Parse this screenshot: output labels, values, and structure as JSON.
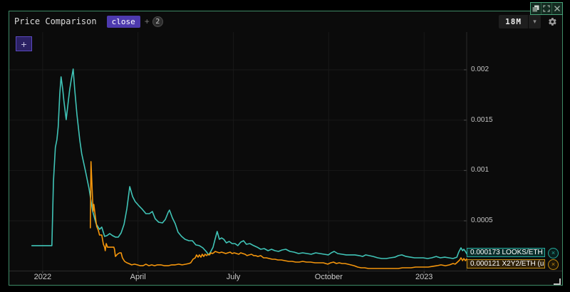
{
  "header": {
    "title": "Price Comparison",
    "badge": "close",
    "plus_sign": "+",
    "count": "2",
    "timeframe": "18M"
  },
  "icons": {
    "chevron_down": "▾",
    "plus": "+",
    "remove": "×"
  },
  "price_labels": [
    {
      "value": "0.000173",
      "pair": "LOOKS/ETH ...",
      "accent": "#25a89b"
    },
    {
      "value": "0.000121",
      "pair": "X2Y2/ETH (u...",
      "accent": "#c08a12"
    }
  ],
  "colors": {
    "panel_border": "#3e8a66",
    "grid": "#181818",
    "axis": "#2b2b2b",
    "tick": "#4d4d4d",
    "looks_line": "#40c4b7",
    "x2y2_line": "#f5960c"
  },
  "chart_data": {
    "type": "line",
    "title": "Price Comparison",
    "timeframe": "18M",
    "x_unit": "months_since_2022_01_01",
    "xlim": [
      -1.05,
      13.34
    ],
    "ylim": [
      0,
      0.002375
    ],
    "grid": true,
    "axis_position": "right",
    "x_ticks": [
      {
        "m": 0,
        "label": "2022"
      },
      {
        "m": 3,
        "label": "April"
      },
      {
        "m": 6,
        "label": "July"
      },
      {
        "m": 9,
        "label": "October"
      },
      {
        "m": 12,
        "label": "2023"
      }
    ],
    "y_ticks": [
      {
        "v": 0.0005,
        "label": "0.0005"
      },
      {
        "v": 0.001,
        "label": "0.001"
      },
      {
        "v": 0.0015,
        "label": "0.0015"
      },
      {
        "v": 0.002,
        "label": "0.002"
      }
    ],
    "series": [
      {
        "name": "LOOKS/ETH",
        "color": "#40c4b7",
        "last_value": 0.000173,
        "points": [
          [
            -0.34,
            0.000253
          ],
          [
            0.29,
            0.000253
          ],
          [
            0.34,
            0.00089
          ],
          [
            0.4,
            0.001229
          ],
          [
            0.45,
            0.001307
          ],
          [
            0.49,
            0.001434
          ],
          [
            0.54,
            0.00176
          ],
          [
            0.58,
            0.00193
          ],
          [
            0.63,
            0.001809
          ],
          [
            0.67,
            0.001689
          ],
          [
            0.74,
            0.001505
          ],
          [
            0.81,
            0.001696
          ],
          [
            0.85,
            0.001802
          ],
          [
            0.9,
            0.001901
          ],
          [
            0.96,
            0.002008
          ],
          [
            1.01,
            0.001802
          ],
          [
            1.08,
            0.001555
          ],
          [
            1.17,
            0.0013
          ],
          [
            1.23,
            0.001166
          ],
          [
            1.35,
            0.000989
          ],
          [
            1.46,
            0.000819
          ],
          [
            1.57,
            0.000599
          ],
          [
            1.68,
            0.000472
          ],
          [
            1.79,
            0.000415
          ],
          [
            1.86,
            0.000437
          ],
          [
            1.95,
            0.000345
          ],
          [
            2.02,
            0.000352
          ],
          [
            2.11,
            0.000373
          ],
          [
            2.2,
            0.000352
          ],
          [
            2.29,
            0.000338
          ],
          [
            2.38,
            0.000338
          ],
          [
            2.47,
            0.00038
          ],
          [
            2.56,
            0.000465
          ],
          [
            2.65,
            0.000621
          ],
          [
            2.74,
            0.00084
          ],
          [
            2.83,
            0.000741
          ],
          [
            2.91,
            0.000691
          ],
          [
            3.03,
            0.000649
          ],
          [
            3.14,
            0.000613
          ],
          [
            3.25,
            0.000571
          ],
          [
            3.36,
            0.000571
          ],
          [
            3.45,
            0.000592
          ],
          [
            3.54,
            0.000521
          ],
          [
            3.65,
            0.000486
          ],
          [
            3.77,
            0.000479
          ],
          [
            3.86,
            0.000514
          ],
          [
            3.95,
            0.000585
          ],
          [
            3.99,
            0.000606
          ],
          [
            4.08,
            0.000529
          ],
          [
            4.17,
            0.000472
          ],
          [
            4.26,
            0.000387
          ],
          [
            4.37,
            0.000345
          ],
          [
            4.48,
            0.000316
          ],
          [
            4.6,
            0.000302
          ],
          [
            4.71,
            0.000302
          ],
          [
            4.82,
            0.00026
          ],
          [
            4.93,
            0.000253
          ],
          [
            5.04,
            0.000231
          ],
          [
            5.16,
            0.000189
          ],
          [
            5.22,
            0.000161
          ],
          [
            5.29,
            0.000196
          ],
          [
            5.36,
            0.000238
          ],
          [
            5.43,
            0.000323
          ],
          [
            5.49,
            0.000394
          ],
          [
            5.56,
            0.000316
          ],
          [
            5.63,
            0.00033
          ],
          [
            5.7,
            0.000316
          ],
          [
            5.78,
            0.000281
          ],
          [
            5.87,
            0.000295
          ],
          [
            5.96,
            0.000274
          ],
          [
            6.05,
            0.000274
          ],
          [
            6.14,
            0.000253
          ],
          [
            6.23,
            0.000288
          ],
          [
            6.32,
            0.000302
          ],
          [
            6.41,
            0.000267
          ],
          [
            6.52,
            0.000274
          ],
          [
            6.64,
            0.000253
          ],
          [
            6.75,
            0.000238
          ],
          [
            6.86,
            0.000217
          ],
          [
            6.97,
            0.000224
          ],
          [
            7.09,
            0.000203
          ],
          [
            7.2,
            0.000217
          ],
          [
            7.31,
            0.000203
          ],
          [
            7.42,
            0.000196
          ],
          [
            7.53,
            0.00021
          ],
          [
            7.65,
            0.000217
          ],
          [
            7.78,
            0.000196
          ],
          [
            7.91,
            0.000189
          ],
          [
            8.05,
            0.000175
          ],
          [
            8.18,
            0.000182
          ],
          [
            8.32,
            0.000175
          ],
          [
            8.45,
            0.000168
          ],
          [
            8.59,
            0.000182
          ],
          [
            8.72,
            0.000175
          ],
          [
            8.86,
            0.000168
          ],
          [
            8.99,
            0.000161
          ],
          [
            9.08,
            0.000182
          ],
          [
            9.17,
            0.000196
          ],
          [
            9.28,
            0.000175
          ],
          [
            9.42,
            0.000168
          ],
          [
            9.55,
            0.000161
          ],
          [
            9.69,
            0.000161
          ],
          [
            9.82,
            0.000161
          ],
          [
            9.96,
            0.000154
          ],
          [
            10.07,
            0.000146
          ],
          [
            10.16,
            0.000161
          ],
          [
            10.27,
            0.000154
          ],
          [
            10.4,
            0.000146
          ],
          [
            10.54,
            0.000132
          ],
          [
            10.67,
            0.000125
          ],
          [
            10.81,
            0.000125
          ],
          [
            10.94,
            0.000132
          ],
          [
            11.08,
            0.000139
          ],
          [
            11.19,
            0.000154
          ],
          [
            11.3,
            0.000161
          ],
          [
            11.43,
            0.000146
          ],
          [
            11.57,
            0.000139
          ],
          [
            11.7,
            0.000132
          ],
          [
            11.83,
            0.000132
          ],
          [
            11.97,
            0.000132
          ],
          [
            12.11,
            0.000125
          ],
          [
            12.24,
            0.000132
          ],
          [
            12.38,
            0.000146
          ],
          [
            12.51,
            0.000132
          ],
          [
            12.65,
            0.000139
          ],
          [
            12.78,
            0.000132
          ],
          [
            12.91,
            0.000125
          ],
          [
            13.03,
            0.000139
          ],
          [
            13.09,
            0.000189
          ],
          [
            13.16,
            0.000231
          ],
          [
            13.21,
            0.000203
          ],
          [
            13.25,
            0.000217
          ],
          [
            13.3,
            0.000196
          ],
          [
            13.34,
            0.000173
          ]
        ]
      },
      {
        "name": "X2Y2/ETH",
        "color": "#f5960c",
        "last_value": 0.000121,
        "points": [
          [
            1.5,
            0.00043
          ],
          [
            1.52,
            0.001088
          ],
          [
            1.57,
            0.000713
          ],
          [
            1.59,
            0.000592
          ],
          [
            1.61,
            0.000663
          ],
          [
            1.66,
            0.000536
          ],
          [
            1.7,
            0.000444
          ],
          [
            1.75,
            0.000408
          ],
          [
            1.79,
            0.000359
          ],
          [
            1.86,
            0.000359
          ],
          [
            1.91,
            0.000267
          ],
          [
            1.95,
            0.000238
          ],
          [
            1.97,
            0.000203
          ],
          [
            2.0,
            0.000274
          ],
          [
            2.04,
            0.000238
          ],
          [
            2.15,
            0.000238
          ],
          [
            2.24,
            0.000238
          ],
          [
            2.26,
            0.000217
          ],
          [
            2.29,
            0.000146
          ],
          [
            2.35,
            0.000168
          ],
          [
            2.42,
            0.000182
          ],
          [
            2.47,
            0.000182
          ],
          [
            2.51,
            0.000132
          ],
          [
            2.58,
            9.7e-05
          ],
          [
            2.65,
            8.3e-05
          ],
          [
            2.71,
            7.6e-05
          ],
          [
            2.8,
            6.2e-05
          ],
          [
            2.89,
            6.9e-05
          ],
          [
            2.98,
            6.2e-05
          ],
          [
            3.07,
            5.4e-05
          ],
          [
            3.16,
            5.4e-05
          ],
          [
            3.25,
            6.9e-05
          ],
          [
            3.34,
            5.4e-05
          ],
          [
            3.43,
            6.2e-05
          ],
          [
            3.52,
            5.4e-05
          ],
          [
            3.61,
            6.2e-05
          ],
          [
            3.72,
            6.2e-05
          ],
          [
            3.83,
            5.4e-05
          ],
          [
            3.95,
            5.4e-05
          ],
          [
            4.06,
            6.2e-05
          ],
          [
            4.17,
            6.2e-05
          ],
          [
            4.28,
            6.9e-05
          ],
          [
            4.39,
            6.2e-05
          ],
          [
            4.51,
            6.9e-05
          ],
          [
            4.6,
            7.6e-05
          ],
          [
            4.66,
            8.3e-05
          ],
          [
            4.73,
            0.000118
          ],
          [
            4.8,
            0.000132
          ],
          [
            4.84,
            0.000161
          ],
          [
            4.89,
            0.000139
          ],
          [
            4.93,
            0.000161
          ],
          [
            4.98,
            0.000139
          ],
          [
            5.02,
            0.000168
          ],
          [
            5.07,
            0.000146
          ],
          [
            5.11,
            0.000168
          ],
          [
            5.16,
            0.000154
          ],
          [
            5.2,
            0.000168
          ],
          [
            5.25,
            0.000161
          ],
          [
            5.29,
            0.000182
          ],
          [
            5.34,
            0.000175
          ],
          [
            5.38,
            0.000182
          ],
          [
            5.43,
            0.000196
          ],
          [
            5.49,
            0.000189
          ],
          [
            5.56,
            0.000182
          ],
          [
            5.63,
            0.000189
          ],
          [
            5.7,
            0.000182
          ],
          [
            5.76,
            0.000175
          ],
          [
            5.83,
            0.000182
          ],
          [
            5.9,
            0.000189
          ],
          [
            5.96,
            0.000175
          ],
          [
            6.03,
            0.000182
          ],
          [
            6.1,
            0.000175
          ],
          [
            6.17,
            0.000168
          ],
          [
            6.23,
            0.000182
          ],
          [
            6.3,
            0.000175
          ],
          [
            6.37,
            0.000168
          ],
          [
            6.43,
            0.000154
          ],
          [
            6.5,
            0.000161
          ],
          [
            6.57,
            0.000168
          ],
          [
            6.64,
            0.000154
          ],
          [
            6.7,
            0.000154
          ],
          [
            6.77,
            0.000146
          ],
          [
            6.86,
            0.000154
          ],
          [
            6.95,
            0.000132
          ],
          [
            7.04,
            0.000132
          ],
          [
            7.13,
            0.000125
          ],
          [
            7.22,
            0.000118
          ],
          [
            7.31,
            0.000118
          ],
          [
            7.4,
            0.000111
          ],
          [
            7.51,
            0.000111
          ],
          [
            7.62,
            0.000104
          ],
          [
            7.74,
            9.7e-05
          ],
          [
            7.85,
            9.7e-05
          ],
          [
            7.96,
            9e-05
          ],
          [
            8.07,
            9e-05
          ],
          [
            8.18,
            9.7e-05
          ],
          [
            8.3,
            9e-05
          ],
          [
            8.43,
            9e-05
          ],
          [
            8.57,
            8.3e-05
          ],
          [
            8.7,
            8.3e-05
          ],
          [
            8.83,
            8.3e-05
          ],
          [
            8.97,
            6.9e-05
          ],
          [
            9.06,
            8.3e-05
          ],
          [
            9.15,
            9e-05
          ],
          [
            9.24,
            7.6e-05
          ],
          [
            9.33,
            8.3e-05
          ],
          [
            9.42,
            7.6e-05
          ],
          [
            9.51,
            7.6e-05
          ],
          [
            9.6,
            6.9e-05
          ],
          [
            9.69,
            6.2e-05
          ],
          [
            9.8,
            5.4e-05
          ],
          [
            9.91,
            4e-05
          ],
          [
            10.02,
            3.3e-05
          ],
          [
            10.13,
            3.3e-05
          ],
          [
            10.25,
            2.6e-05
          ],
          [
            10.38,
            2.6e-05
          ],
          [
            10.52,
            2.6e-05
          ],
          [
            10.65,
            2.6e-05
          ],
          [
            10.78,
            2.6e-05
          ],
          [
            10.92,
            2.6e-05
          ],
          [
            11.05,
            2.6e-05
          ],
          [
            11.19,
            2.6e-05
          ],
          [
            11.32,
            3.3e-05
          ],
          [
            11.46,
            3.3e-05
          ],
          [
            11.59,
            3.3e-05
          ],
          [
            11.73,
            4e-05
          ],
          [
            11.86,
            4e-05
          ],
          [
            12.0,
            4e-05
          ],
          [
            12.13,
            4e-05
          ],
          [
            12.26,
            4.7e-05
          ],
          [
            12.4,
            5.4e-05
          ],
          [
            12.53,
            6.2e-05
          ],
          [
            12.67,
            5.4e-05
          ],
          [
            12.8,
            6.2e-05
          ],
          [
            12.91,
            7.6e-05
          ],
          [
            12.98,
            6.9e-05
          ],
          [
            13.05,
            9e-05
          ],
          [
            13.12,
            0.000111
          ],
          [
            13.16,
            0.000132
          ],
          [
            13.21,
            0.000104
          ],
          [
            13.25,
            0.000125
          ],
          [
            13.3,
            0.000104
          ],
          [
            13.34,
            0.000121
          ]
        ]
      }
    ]
  }
}
